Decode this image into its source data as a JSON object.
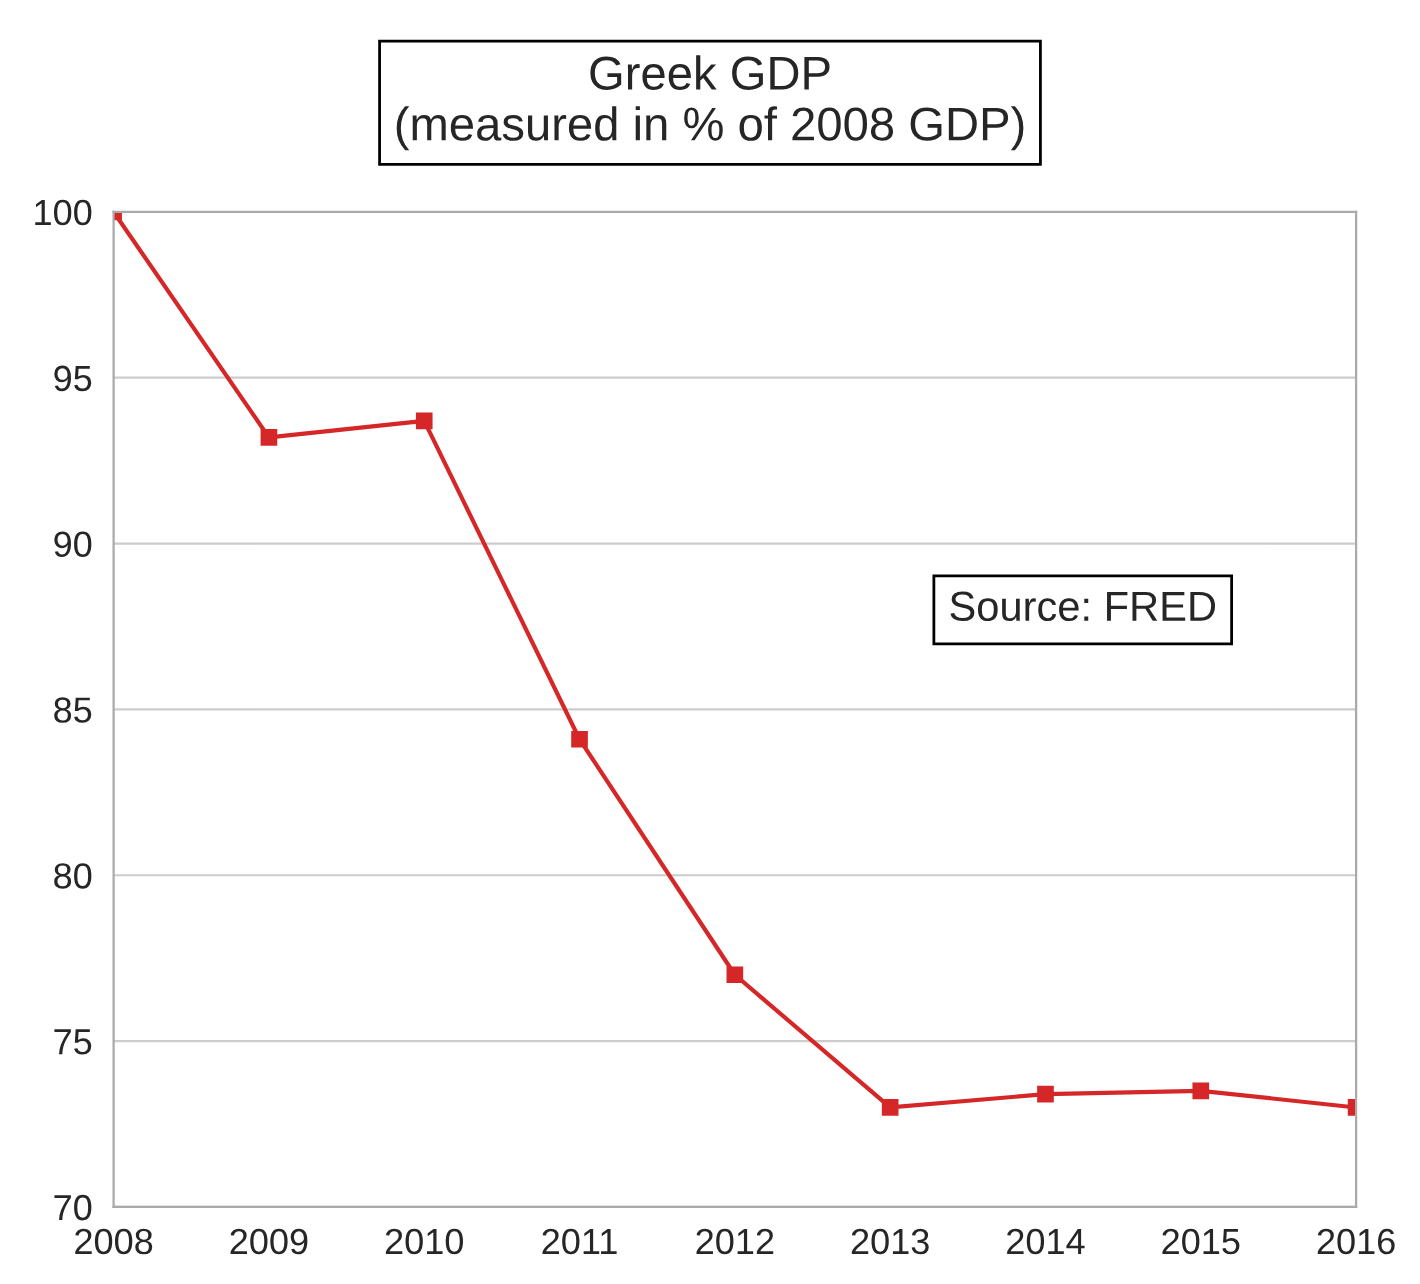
{
  "chart_data": {
    "type": "line",
    "title": "Greek GDP\n(measured in % of 2008 GDP)",
    "x": [
      2008,
      2009,
      2010,
      2011,
      2012,
      2013,
      2014,
      2015,
      2016
    ],
    "series": [
      {
        "color": "#d62728",
        "values": [
          100,
          93.2,
          93.7,
          84.1,
          77.0,
          73.0,
          73.4,
          73.5,
          73.0
        ]
      }
    ],
    "xlim": [
      2008,
      2016
    ],
    "xticks": [
      2008,
      2009,
      2010,
      2011,
      2012,
      2013,
      2014,
      2015,
      2016
    ],
    "ylim": [
      70,
      100
    ],
    "yticks": [
      70,
      75,
      80,
      85,
      90,
      95,
      100
    ],
    "grid": "y",
    "marker": "square",
    "line_style": "solid",
    "annotations": [
      "Source: FRED"
    ]
  }
}
